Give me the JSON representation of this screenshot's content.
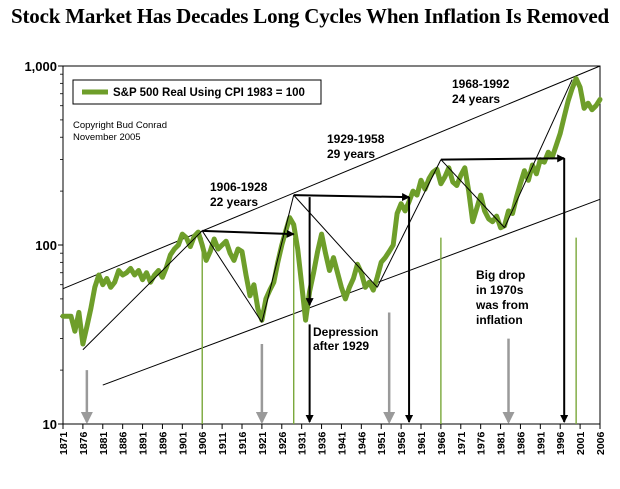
{
  "chart_data": {
    "type": "line",
    "title": "Stock Market Has Decades Long Cycles When Inflation Is Removed",
    "yscale": "log",
    "ylim": [
      10,
      1000
    ],
    "xlim": [
      1871,
      2006
    ],
    "y_ticks": [
      {
        "value": 10,
        "label": "10"
      },
      {
        "value": 100,
        "label": "100"
      },
      {
        "value": 1000,
        "label": "1,000"
      }
    ],
    "x_ticks": [
      1871,
      1876,
      1881,
      1886,
      1891,
      1896,
      1901,
      1906,
      1911,
      1916,
      1921,
      1926,
      1931,
      1936,
      1941,
      1946,
      1951,
      1956,
      1961,
      1966,
      1971,
      1976,
      1981,
      1986,
      1991,
      1996,
      2001,
      2006
    ],
    "legend": {
      "label": "S&P 500 Real Using CPI 1983 = 100",
      "position": "top-left"
    },
    "copyright": [
      "Copyright Bud Conrad",
      "November 2005"
    ],
    "series": [
      {
        "name": "S&P 500 Real Using CPI 1983 = 100",
        "color": "#6e9e2a",
        "x": [
          1871,
          1873,
          1874,
          1875,
          1876,
          1877,
          1878,
          1879,
          1880,
          1881,
          1882,
          1883,
          1884,
          1885,
          1886,
          1887,
          1888,
          1889,
          1890,
          1891,
          1892,
          1893,
          1894,
          1895,
          1896,
          1897,
          1898,
          1899,
          1900,
          1901,
          1902,
          1903,
          1904,
          1905,
          1906,
          1907,
          1908,
          1909,
          1910,
          1911,
          1912,
          1913,
          1914,
          1915,
          1916,
          1917,
          1918,
          1919,
          1920,
          1921,
          1922,
          1923,
          1924,
          1925,
          1926,
          1927,
          1928,
          1929,
          1930,
          1931,
          1932,
          1933,
          1934,
          1935,
          1936,
          1937,
          1938,
          1939,
          1940,
          1941,
          1942,
          1943,
          1944,
          1945,
          1946,
          1947,
          1948,
          1949,
          1950,
          1951,
          1952,
          1953,
          1954,
          1955,
          1956,
          1957,
          1958,
          1959,
          1960,
          1961,
          1962,
          1963,
          1964,
          1965,
          1966,
          1967,
          1968,
          1969,
          1970,
          1971,
          1972,
          1973,
          1974,
          1975,
          1976,
          1977,
          1978,
          1979,
          1980,
          1981,
          1982,
          1983,
          1984,
          1985,
          1986,
          1987,
          1988,
          1989,
          1990,
          1991,
          1992,
          1993,
          1994,
          1995,
          1996,
          1997,
          1998,
          1999,
          2000,
          2001,
          2002,
          2003,
          2004,
          2005,
          2006
        ],
        "values": [
          40,
          40,
          33,
          42,
          28,
          35,
          44,
          58,
          68,
          60,
          65,
          58,
          62,
          72,
          68,
          70,
          74,
          68,
          72,
          64,
          70,
          62,
          68,
          72,
          66,
          75,
          88,
          95,
          100,
          115,
          110,
          98,
          112,
          118,
          100,
          82,
          92,
          108,
          95,
          100,
          105,
          90,
          82,
          95,
          92,
          68,
          52,
          60,
          44,
          38,
          50,
          56,
          62,
          80,
          100,
          120,
          142,
          130,
          95,
          60,
          38,
          55,
          70,
          92,
          115,
          90,
          72,
          85,
          70,
          58,
          50,
          58,
          65,
          78,
          70,
          58,
          62,
          56,
          66,
          80,
          85,
          92,
          100,
          150,
          170,
          155,
          175,
          200,
          190,
          230,
          205,
          235,
          255,
          265,
          220,
          240,
          270,
          225,
          215,
          245,
          270,
          200,
          135,
          160,
          190,
          155,
          140,
          135,
          145,
          125,
          128,
          155,
          150,
          185,
          220,
          260,
          230,
          280,
          250,
          300,
          290,
          330,
          310,
          360,
          420,
          520,
          640,
          750,
          850,
          760,
          580,
          620,
          570,
          600,
          650
        ]
      }
    ],
    "channel": [
      {
        "name": "upper-trend",
        "points": [
          [
            1871,
            57
          ],
          [
            2006,
            1000
          ]
        ]
      },
      {
        "name": "lower-trend",
        "points": [
          [
            1881,
            16.5
          ],
          [
            2006,
            180
          ]
        ]
      }
    ],
    "cycle_lines": [
      {
        "from": [
          1876,
          26
        ],
        "to": [
          1906,
          120
        ]
      },
      {
        "from": [
          1906,
          120
        ],
        "to": [
          1921,
          37
        ]
      },
      {
        "from": [
          1921,
          37
        ],
        "to": [
          1929,
          190
        ]
      },
      {
        "from": [
          1929,
          190
        ],
        "to": [
          1950,
          58
        ]
      },
      {
        "from": [
          1950,
          58
        ],
        "to": [
          1966,
          300
        ]
      },
      {
        "from": [
          1966,
          300
        ],
        "to": [
          1982,
          125
        ]
      },
      {
        "from": [
          1982,
          125
        ],
        "to": [
          1999,
          840
        ]
      }
    ],
    "cycle_arrows": [
      {
        "from": [
          1906,
          120
        ],
        "to": [
          1929,
          115
        ]
      },
      {
        "from": [
          1929,
          190
        ],
        "to": [
          1958,
          185
        ]
      },
      {
        "from": [
          1966,
          300
        ],
        "to": [
          1997,
          305
        ]
      }
    ],
    "down_arrows": [
      {
        "x": 1933,
        "from": 185,
        "to": 45
      },
      {
        "x": 1933,
        "from": 36,
        "to": 10
      },
      {
        "x": 1958,
        "from": 185,
        "to": 10
      },
      {
        "x": 1997,
        "from": 305,
        "to": 10
      }
    ],
    "gray_arrows": [
      {
        "x": 1877,
        "from": 20,
        "to": 10
      },
      {
        "x": 1921,
        "from": 28,
        "to": 10
      },
      {
        "x": 1953,
        "from": 42,
        "to": 10
      },
      {
        "x": 1983,
        "from": 30,
        "to": 10
      }
    ],
    "green_lines": [
      1906,
      1929,
      1966,
      2000
    ],
    "annotations": {
      "c1906": [
        "1906-1928",
        "22 years"
      ],
      "c1929": [
        "1929-1958",
        "29 years"
      ],
      "c1968": [
        "1968-1992",
        "24 years"
      ],
      "depression": [
        "Depression",
        "after 1929"
      ],
      "drop": [
        "Big drop",
        "in 1970s",
        "was from",
        "inflation"
      ]
    }
  }
}
